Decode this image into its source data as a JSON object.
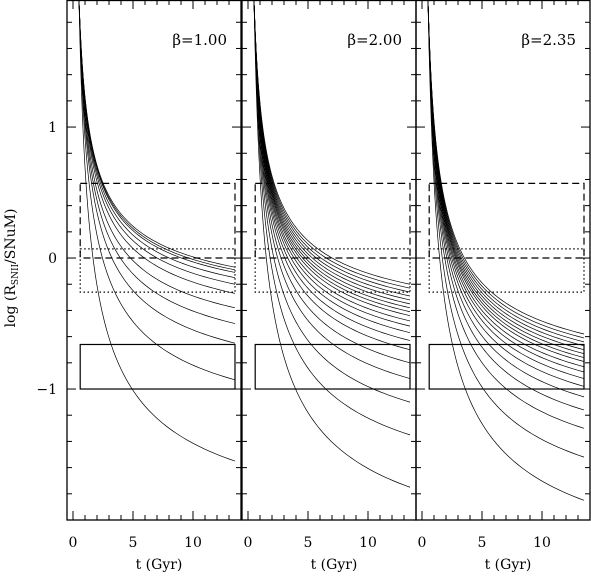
{
  "chart_data": {
    "type": "line",
    "xlabel": "t (Gyr)",
    "ylabel": "log (R_SNII/SNuM)",
    "ylabel_parts": {
      "prefix": "log  (R",
      "subscript": "SNII",
      "suffix": "/SNuM)"
    },
    "xlim": [
      -0.5,
      14
    ],
    "ylim": [
      -2.0,
      1.97
    ],
    "xticks": [
      0,
      5,
      10
    ],
    "xtick_labels": [
      "0",
      "5",
      "10"
    ],
    "yticks": [
      1,
      0,
      -1
    ],
    "ytick_labels": [
      "1",
      "0",
      "−1"
    ],
    "grid": false,
    "panels": [
      {
        "label": "β=1.00",
        "beta": 1.0,
        "endpoints_at_13_5_gyr": [
          -0.07,
          -0.09,
          -0.11,
          -0.15,
          -0.2,
          -0.27,
          -0.38,
          -0.5,
          -0.65,
          -0.93,
          -1.55
        ],
        "curve_shape_exponent": 0.5,
        "boxes": [
          {
            "style": "dashed",
            "x": [
              0.6,
              13.5
            ],
            "y": [
              0.0,
              0.57
            ]
          },
          {
            "style": "dotted",
            "x": [
              0.6,
              13.5
            ],
            "y": [
              -0.26,
              0.07
            ]
          },
          {
            "style": "solid",
            "x": [
              0.6,
              13.5
            ],
            "y": [
              -1.0,
              -0.66
            ]
          }
        ]
      },
      {
        "label": "β=2.00",
        "beta": 2.0,
        "endpoints_at_13_5_gyr": [
          -0.2,
          -0.23,
          -0.26,
          -0.29,
          -0.32,
          -0.35,
          -0.38,
          -0.41,
          -0.44,
          -0.48,
          -0.52,
          -0.57,
          -0.63,
          -0.7,
          -0.8,
          -0.92,
          -1.1,
          -1.35,
          -1.75
        ],
        "curve_shape_exponent": 0.5,
        "boxes": [
          {
            "style": "dashed",
            "x": [
              0.6,
              13.5
            ],
            "y": [
              0.0,
              0.57
            ]
          },
          {
            "style": "dotted",
            "x": [
              0.6,
              13.5
            ],
            "y": [
              -0.26,
              0.07
            ]
          },
          {
            "style": "solid",
            "x": [
              0.6,
              13.5
            ],
            "y": [
              -1.0,
              -0.66
            ]
          }
        ]
      },
      {
        "label": "β=2.35",
        "beta": 2.35,
        "endpoints_at_13_5_gyr": [
          -0.58,
          -0.61,
          -0.64,
          -0.67,
          -0.7,
          -0.73,
          -0.76,
          -0.79,
          -0.83,
          -0.87,
          -0.92,
          -0.98,
          -1.06,
          -1.16,
          -1.3,
          -1.52,
          -1.85
        ],
        "curve_shape_exponent": 0.5,
        "boxes": [
          {
            "style": "dashed",
            "x": [
              0.6,
              13.5
            ],
            "y": [
              0.0,
              0.57
            ]
          },
          {
            "style": "dotted",
            "x": [
              0.6,
              13.5
            ],
            "y": [
              -0.26,
              0.07
            ]
          },
          {
            "style": "solid",
            "x": [
              0.6,
              13.5
            ],
            "y": [
              -1.0,
              -0.66
            ]
          }
        ]
      }
    ]
  }
}
